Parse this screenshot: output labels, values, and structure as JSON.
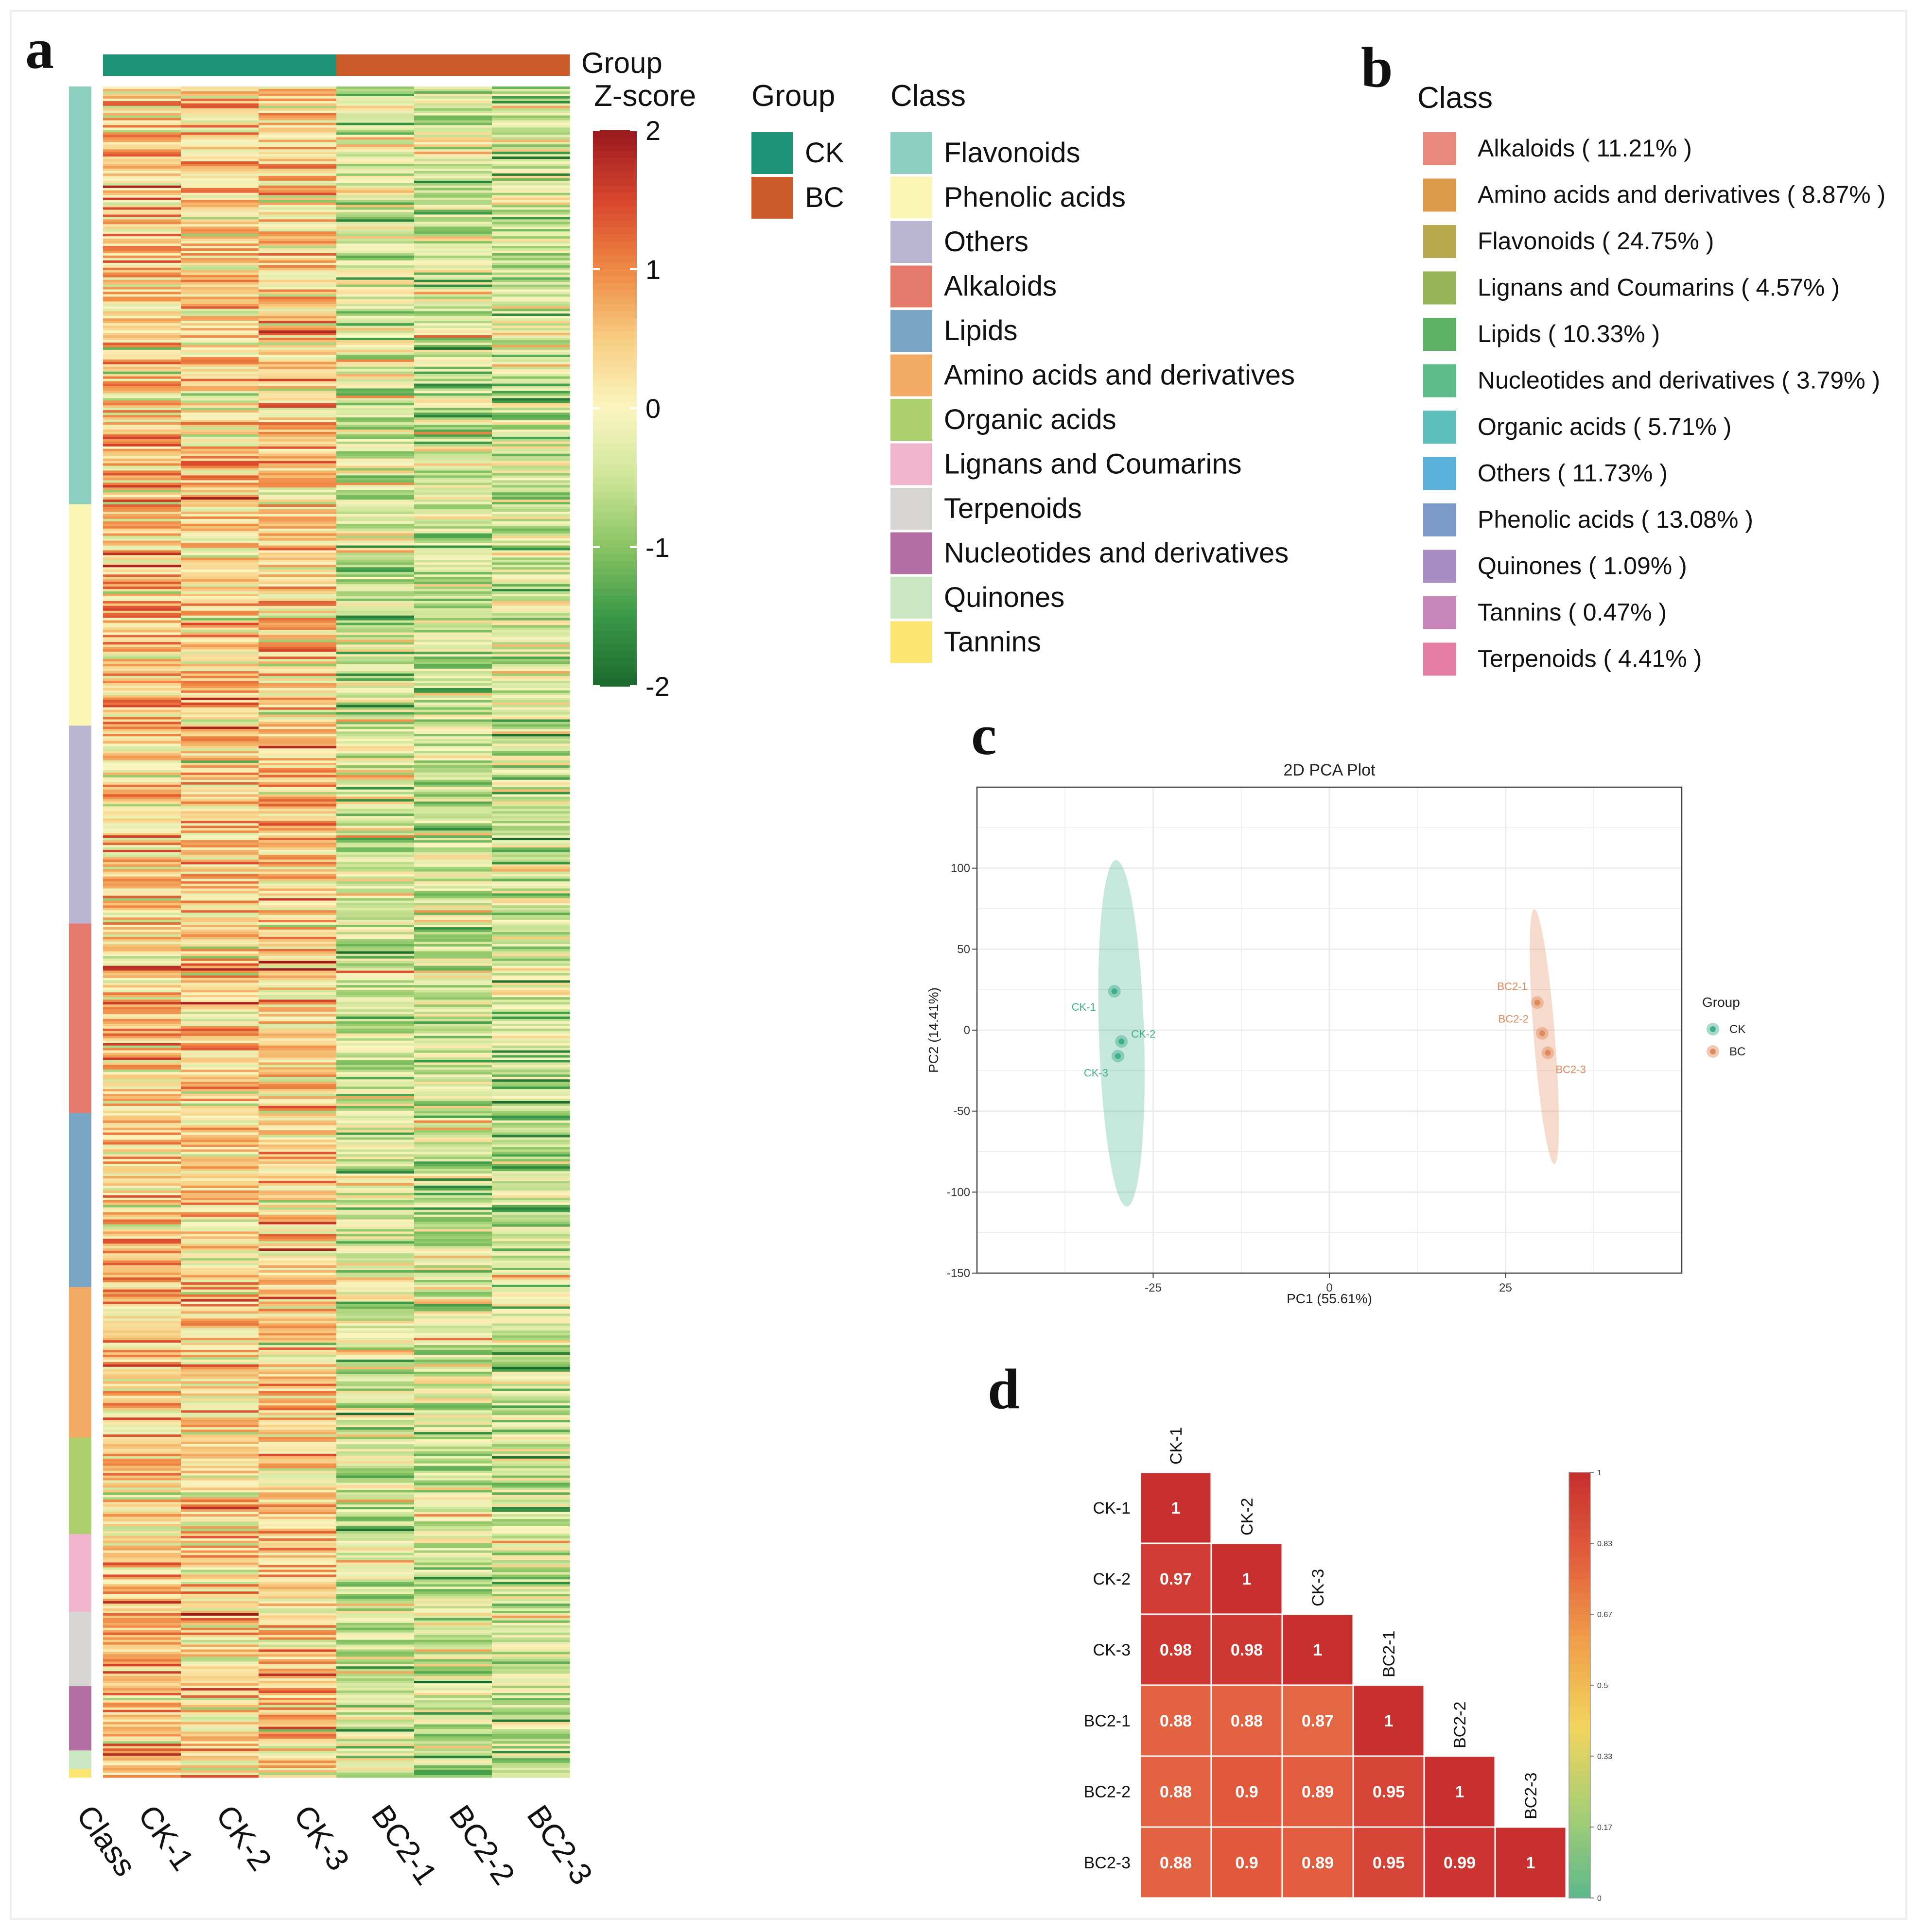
{
  "chart_data": [
    {
      "panel": "a",
      "type": "heatmap",
      "top_annotation_label": "Group",
      "legend_title": "Z-score",
      "colorbar_ticks": [
        2,
        1,
        0,
        -1,
        -2
      ],
      "samples": [
        "CK-1",
        "CK-2",
        "CK-3",
        "BC2-1",
        "BC2-2",
        "BC2-3"
      ],
      "x_tick_labels": [
        "Class",
        "CK-1",
        "CK-2",
        "CK-3",
        "BC2-1",
        "BC2-2",
        "BC2-3"
      ],
      "sample_groups": [
        "CK",
        "CK",
        "CK",
        "BC",
        "BC",
        "BC"
      ],
      "group_legend": {
        "title": "Group",
        "items": [
          {
            "label": "CK",
            "color": "#1e9477"
          },
          {
            "label": "BC",
            "color": "#cc5b2a"
          }
        ]
      },
      "class_legend": {
        "title": "Class",
        "items": [
          {
            "label": "Flavonoids",
            "color": "#8dcfbf"
          },
          {
            "label": "Phenolic acids",
            "color": "#fbf5b5"
          },
          {
            "label": "Others",
            "color": "#b9b4cf"
          },
          {
            "label": "Alkaloids",
            "color": "#e67a6c"
          },
          {
            "label": "Lipids",
            "color": "#7aa6c6"
          },
          {
            "label": "Amino acids and derivatives",
            "color": "#f2aa65"
          },
          {
            "label": "Organic acids",
            "color": "#acd06c"
          },
          {
            "label": "Lignans and Coumarins",
            "color": "#f0b4cc"
          },
          {
            "label": "Terpenoids",
            "color": "#d7d6d4"
          },
          {
            "label": "Nucleotides and derivatives",
            "color": "#b36ea4"
          },
          {
            "label": "Quinones",
            "color": "#cbe7c3"
          },
          {
            "label": "Tannins",
            "color": "#fbe672"
          }
        ]
      },
      "class_row_fractions": [
        0.247,
        0.131,
        0.117,
        0.112,
        0.103,
        0.089,
        0.057,
        0.046,
        0.044,
        0.038,
        0.011,
        0.005
      ],
      "sample_mean_zscore": [
        0.45,
        0.35,
        0.4,
        -0.35,
        -0.4,
        -0.45
      ],
      "color_scale": [
        "#1d6b2e",
        "#3b9a48",
        "#8cc565",
        "#cfe59a",
        "#fbf5c0",
        "#f7cd82",
        "#ef8a45",
        "#d9472d",
        "#9c1b1e"
      ]
    },
    {
      "panel": "b",
      "type": "pie",
      "legend_title": "Class",
      "slices": [
        {
          "label": "Alkaloids ( 11.21% )",
          "value": 11.21,
          "color": "#e8897c"
        },
        {
          "label": "Amino acids and derivatives ( 8.87% )",
          "value": 8.87,
          "color": "#dc994a"
        },
        {
          "label": "Flavonoids ( 24.75% )",
          "value": 24.75,
          "color": "#b9a94e"
        },
        {
          "label": "Lignans and Coumarins ( 4.57% )",
          "value": 4.57,
          "color": "#95b558"
        },
        {
          "label": "Lipids ( 10.33% )",
          "value": 10.33,
          "color": "#5db163"
        },
        {
          "label": "Nucleotides and derivatives ( 3.79% )",
          "value": 3.79,
          "color": "#5ebb8a"
        },
        {
          "label": "Organic acids ( 5.71% )",
          "value": 5.71,
          "color": "#5fbfbd"
        },
        {
          "label": "Others ( 11.73% )",
          "value": 11.73,
          "color": "#5cb1db"
        },
        {
          "label": "Phenolic acids ( 13.08% )",
          "value": 13.08,
          "color": "#7d99ca"
        },
        {
          "label": "Quinones ( 1.09% )",
          "value": 1.09,
          "color": "#a98cc4"
        },
        {
          "label": "Tannins ( 0.47% )",
          "value": 0.47,
          "color": "#c886ba"
        },
        {
          "label": "Terpenoids ( 4.41% )",
          "value": 4.41,
          "color": "#e57fa6"
        }
      ]
    },
    {
      "panel": "c",
      "type": "scatter",
      "title": "2D PCA Plot",
      "xlabel": "PC1 (55.61%)",
      "ylabel": "PC2 (14.41%)",
      "xlim": [
        -50,
        50
      ],
      "ylim": [
        -150,
        150
      ],
      "xticks": [
        -25,
        0,
        25
      ],
      "yticks": [
        100,
        50,
        0,
        -50,
        -100,
        -150
      ],
      "legend_title": "Group",
      "series": [
        {
          "name": "CK",
          "color": "#3fae8c",
          "points": [
            {
              "label": "CK-1",
              "x": -30.5,
              "y": 24
            },
            {
              "label": "CK-2",
              "x": -29.5,
              "y": -7
            },
            {
              "label": "CK-3",
              "x": -30,
              "y": -16
            }
          ],
          "ellipse": {
            "cx": -29.5,
            "cy": -2,
            "rx": 3.2,
            "ry": 107,
            "angle_deg": -1.8
          }
        },
        {
          "name": "BC",
          "color": "#e0895a",
          "points": [
            {
              "label": "BC2-1",
              "x": 29.5,
              "y": 17
            },
            {
              "label": "BC2-2",
              "x": 30.2,
              "y": -2
            },
            {
              "label": "BC2-3",
              "x": 31,
              "y": -14
            }
          ],
          "ellipse": {
            "cx": 30.5,
            "cy": -4,
            "rx": 1.5,
            "ry": 79,
            "angle_deg": -4.5
          }
        }
      ]
    },
    {
      "panel": "d",
      "type": "heatmap",
      "variant": "lower-triangle correlation matrix",
      "labels": [
        "CK-1",
        "CK-2",
        "CK-3",
        "BC2-1",
        "BC2-2",
        "BC2-3"
      ],
      "matrix": [
        [
          1
        ],
        [
          0.97,
          1
        ],
        [
          0.98,
          0.98,
          1
        ],
        [
          0.88,
          0.88,
          0.87,
          1
        ],
        [
          0.88,
          0.9,
          0.89,
          0.95,
          1
        ],
        [
          0.88,
          0.9,
          0.89,
          0.95,
          0.99,
          1
        ]
      ],
      "colorbar_ticks": [
        "1",
        "0.83",
        "0.67",
        "0.5",
        "0.33",
        "0.17",
        "0"
      ],
      "color_scale": [
        "#5fb98a",
        "#a9cf74",
        "#f3d45e",
        "#f0a14a",
        "#e35f3c",
        "#c8302f"
      ]
    }
  ],
  "panel_letters": {
    "a": "a",
    "b": "b",
    "c": "c",
    "d": "d"
  }
}
